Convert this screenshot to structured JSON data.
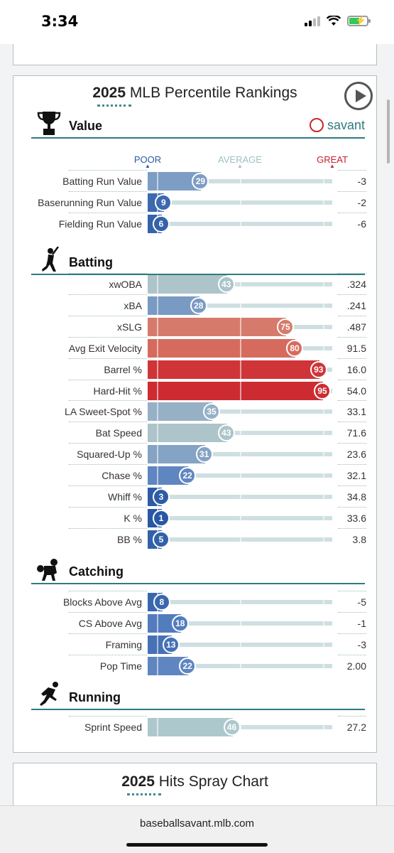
{
  "status": {
    "time": "3:34"
  },
  "card": {
    "title_year": "2025",
    "title_text": "MLB Percentile Rankings"
  },
  "brand": {
    "name": "savant"
  },
  "scale": {
    "poor": "POOR",
    "average": "AVERAGE",
    "great": "GREAT"
  },
  "sections": [
    {
      "name": "Value",
      "icon": "trophy-icon",
      "rows": [
        {
          "label": "Batting Run Value",
          "pct": 29,
          "value": "-3"
        },
        {
          "label": "Baserunning Run Value",
          "pct": 9,
          "value": "-2"
        },
        {
          "label": "Fielding Run Value",
          "pct": 6,
          "value": "-6"
        }
      ]
    },
    {
      "name": "Batting",
      "icon": "batter-icon",
      "rows": [
        {
          "label": "xwOBA",
          "pct": 43,
          "value": ".324"
        },
        {
          "label": "xBA",
          "pct": 28,
          "value": ".241"
        },
        {
          "label": "xSLG",
          "pct": 75,
          "value": ".487"
        },
        {
          "label": "Avg Exit Velocity",
          "pct": 80,
          "value": "91.5"
        },
        {
          "label": "Barrel %",
          "pct": 93,
          "value": "16.0"
        },
        {
          "label": "Hard-Hit %",
          "pct": 95,
          "value": "54.0"
        },
        {
          "label": "LA Sweet-Spot %",
          "pct": 35,
          "value": "33.1"
        },
        {
          "label": "Bat Speed",
          "pct": 43,
          "value": "71.6"
        },
        {
          "label": "Squared-Up %",
          "pct": 31,
          "value": "23.6"
        },
        {
          "label": "Chase %",
          "pct": 22,
          "value": "32.1"
        },
        {
          "label": "Whiff %",
          "pct": 3,
          "value": "34.8"
        },
        {
          "label": "K %",
          "pct": 1,
          "value": "33.6"
        },
        {
          "label": "BB %",
          "pct": 5,
          "value": "3.8"
        }
      ]
    },
    {
      "name": "Catching",
      "icon": "catcher-icon",
      "rows": [
        {
          "label": "Blocks Above Avg",
          "pct": 8,
          "value": "-5"
        },
        {
          "label": "CS Above Avg",
          "pct": 18,
          "value": "-1"
        },
        {
          "label": "Framing",
          "pct": 13,
          "value": "-3"
        },
        {
          "label": "Pop Time",
          "pct": 22,
          "value": "2.00"
        }
      ]
    },
    {
      "name": "Running",
      "icon": "runner-icon",
      "rows": [
        {
          "label": "Sprint Speed",
          "pct": 46,
          "value": "27.2"
        }
      ]
    }
  ],
  "spray": {
    "title_year": "2025",
    "title_text": "Hits Spray Chart"
  },
  "browser": {
    "url": "baseballsavant.mlb.com"
  }
}
